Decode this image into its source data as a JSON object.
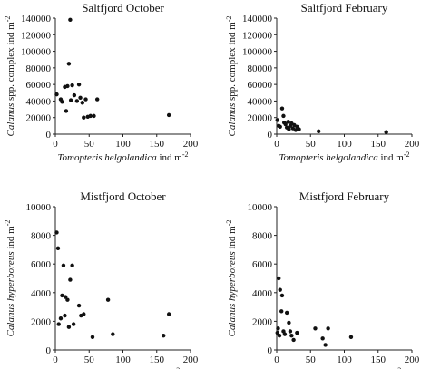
{
  "chart_data": [
    {
      "type": "scatter",
      "title": "Saltfjord October",
      "ylabel": {
        "italic": "Calanus",
        "rest": " spp. complex ind m",
        "sup": "-2"
      },
      "xlabel": {
        "italic": "Tomopteris helgolandica",
        "rest": " ind m",
        "sup": "-2"
      },
      "xlim": [
        0,
        200
      ],
      "ylim": [
        0,
        140000
      ],
      "xticks": [
        "0",
        "50",
        "100",
        "150",
        "200"
      ],
      "yticks": [
        "0",
        "20000",
        "40000",
        "60000",
        "80000",
        "100000",
        "120000",
        "140000"
      ],
      "points": [
        [
          2,
          48000
        ],
        [
          8,
          42000
        ],
        [
          10,
          39000
        ],
        [
          14,
          57000
        ],
        [
          16,
          28000
        ],
        [
          18,
          58000
        ],
        [
          20,
          85000
        ],
        [
          22,
          138000
        ],
        [
          23,
          41000
        ],
        [
          25,
          59000
        ],
        [
          28,
          47000
        ],
        [
          32,
          40000
        ],
        [
          35,
          60000
        ],
        [
          37,
          44000
        ],
        [
          40,
          38000
        ],
        [
          42,
          20000
        ],
        [
          45,
          42000
        ],
        [
          48,
          21000
        ],
        [
          52,
          22000
        ],
        [
          57,
          22000
        ],
        [
          62,
          42000
        ],
        [
          168,
          23000
        ]
      ]
    },
    {
      "type": "scatter",
      "title": "Saltfjord February",
      "ylabel": {
        "italic": "Calanus",
        "rest": " spp. complex ind m",
        "sup": "-2"
      },
      "xlabel": {
        "italic": "Tomopteris helgolandica",
        "rest": " ind m",
        "sup": "-2"
      },
      "xlim": [
        0,
        200
      ],
      "ylim": [
        0,
        140000
      ],
      "xticks": [
        "0",
        "50",
        "100",
        "150",
        "200"
      ],
      "yticks": [
        "0",
        "20000",
        "40000",
        "60000",
        "80000",
        "100000",
        "120000",
        "140000"
      ],
      "points": [
        [
          1,
          17000
        ],
        [
          3,
          10000
        ],
        [
          5,
          9000
        ],
        [
          8,
          31000
        ],
        [
          10,
          22000
        ],
        [
          11,
          14000
        ],
        [
          13,
          12000
        ],
        [
          15,
          8000
        ],
        [
          17,
          15000
        ],
        [
          18,
          6000
        ],
        [
          20,
          10000
        ],
        [
          22,
          13000
        ],
        [
          24,
          7000
        ],
        [
          26,
          11000
        ],
        [
          28,
          5000
        ],
        [
          30,
          9000
        ],
        [
          33,
          6000
        ],
        [
          62,
          3500
        ],
        [
          162,
          2500
        ]
      ]
    },
    {
      "type": "scatter",
      "title": "Mistfjord October",
      "ylabel": {
        "italic": "Calanus hyperboreus",
        "rest": " ind m",
        "sup": "-2"
      },
      "xlabel": {
        "italic": "Themisto abyssorum",
        "rest": " ind m",
        "sup": "-2"
      },
      "xlim": [
        0,
        200
      ],
      "ylim": [
        0,
        10000
      ],
      "xticks": [
        "0",
        "50",
        "100",
        "150",
        "200"
      ],
      "yticks": [
        "0",
        "2000",
        "4000",
        "6000",
        "8000",
        "10000"
      ],
      "points": [
        [
          2,
          8200
        ],
        [
          4,
          7100
        ],
        [
          5,
          1800
        ],
        [
          8,
          2200
        ],
        [
          10,
          3800
        ],
        [
          12,
          5900
        ],
        [
          14,
          2400
        ],
        [
          15,
          3700
        ],
        [
          18,
          3500
        ],
        [
          20,
          1600
        ],
        [
          22,
          4900
        ],
        [
          25,
          5900
        ],
        [
          27,
          1800
        ],
        [
          35,
          3100
        ],
        [
          38,
          2400
        ],
        [
          42,
          2500
        ],
        [
          55,
          900
        ],
        [
          78,
          3500
        ],
        [
          85,
          1100
        ],
        [
          160,
          1000
        ],
        [
          168,
          2500
        ]
      ]
    },
    {
      "type": "scatter",
      "title": "Mistfjord February",
      "ylabel": {
        "italic": "Calanus hyperboreus",
        "rest": " ind m",
        "sup": "-2"
      },
      "xlabel": {
        "italic": "Themisto abyssorum",
        "rest": " ind m",
        "sup": "-2"
      },
      "xlim": [
        0,
        200
      ],
      "ylim": [
        0,
        10000
      ],
      "xticks": [
        "0",
        "50",
        "100",
        "150",
        "200"
      ],
      "yticks": [
        "0",
        "2000",
        "4000",
        "6000",
        "8000",
        "10000"
      ],
      "points": [
        [
          1,
          1200
        ],
        [
          2,
          1500
        ],
        [
          3,
          5000
        ],
        [
          4,
          1000
        ],
        [
          5,
          4200
        ],
        [
          7,
          2700
        ],
        [
          8,
          3800
        ],
        [
          10,
          1300
        ],
        [
          12,
          1100
        ],
        [
          15,
          2600
        ],
        [
          18,
          1900
        ],
        [
          20,
          1300
        ],
        [
          22,
          1000
        ],
        [
          25,
          700
        ],
        [
          30,
          1200
        ],
        [
          57,
          1500
        ],
        [
          68,
          800
        ],
        [
          72,
          350
        ],
        [
          76,
          1500
        ],
        [
          110,
          900
        ]
      ]
    }
  ]
}
